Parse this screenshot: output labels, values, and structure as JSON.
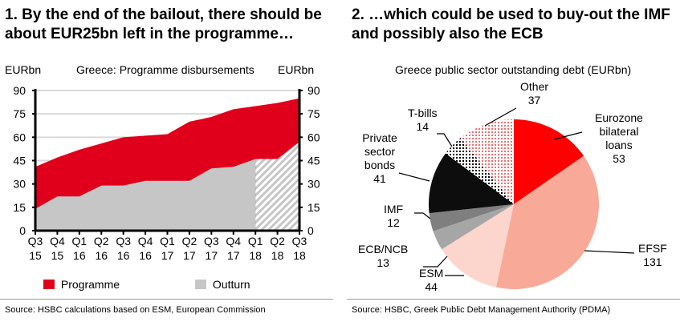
{
  "chart_data": [
    {
      "type": "area",
      "title": "1. By the end of the bailout, there should be about EUR25bn left in the programme…",
      "subtitle": "Greece: Programme disbursements",
      "ylabel_left": "EURbn",
      "ylabel_right": "EURbn",
      "ylim": [
        0,
        90
      ],
      "yticks": [
        0,
        15,
        30,
        45,
        60,
        75,
        90
      ],
      "ytick_labels": [
        "0",
        "15",
        "30",
        "45",
        "60",
        "75",
        "90"
      ],
      "categories": [
        [
          "Q3",
          "15"
        ],
        [
          "Q4",
          "15"
        ],
        [
          "Q1",
          "16"
        ],
        [
          "Q2",
          "16"
        ],
        [
          "Q3",
          "16"
        ],
        [
          "Q4",
          "16"
        ],
        [
          "Q1",
          "17"
        ],
        [
          "Q2",
          "17"
        ],
        [
          "Q3",
          "17"
        ],
        [
          "Q4",
          "17"
        ],
        [
          "Q1",
          "18"
        ],
        [
          "Q2",
          "18"
        ],
        [
          "Q3",
          "18"
        ]
      ],
      "series": [
        {
          "name": "Programme",
          "color": "#e0001b",
          "values": [
            41,
            47,
            52,
            56,
            60,
            61,
            62,
            70,
            73,
            78,
            80,
            82,
            85
          ]
        },
        {
          "name": "Outturn",
          "color": "#c6c6c6",
          "values": [
            14,
            22,
            22,
            29,
            29,
            32,
            32,
            32,
            40,
            41,
            46,
            46,
            57
          ],
          "projected_from_index": 10
        }
      ],
      "grid": true,
      "legend": "bottom",
      "source": "Source: HSBC calculations based on ESM, European Commission"
    },
    {
      "type": "pie",
      "title": "2. …which could be used to buy-out the IMF and possibly also the ECB",
      "subtitle": "Greece public sector outstanding debt (EURbn)",
      "slices": [
        {
          "label": "Eurozone bilateral loans",
          "value": 53,
          "color": "#ff0000"
        },
        {
          "label": "EFSF",
          "value": 131,
          "color": "#f9a998"
        },
        {
          "label": "ESM",
          "value": 44,
          "color": "#fcd5cc"
        },
        {
          "label": "ECB/NCB",
          "value": 13,
          "color": "#a6a6a6"
        },
        {
          "label": "IMF",
          "value": 12,
          "color": "#7f7f7f"
        },
        {
          "label": "Private sector bonds",
          "value": 41,
          "color": "#0d0d0d"
        },
        {
          "label": "T-bills",
          "value": 14,
          "color": "#000000"
        },
        {
          "label": "Other",
          "value": 37,
          "color": "#ff6b6b"
        }
      ],
      "source": "Source: HSBC, Greek Public Debt Management Authority (PDMA)"
    }
  ]
}
